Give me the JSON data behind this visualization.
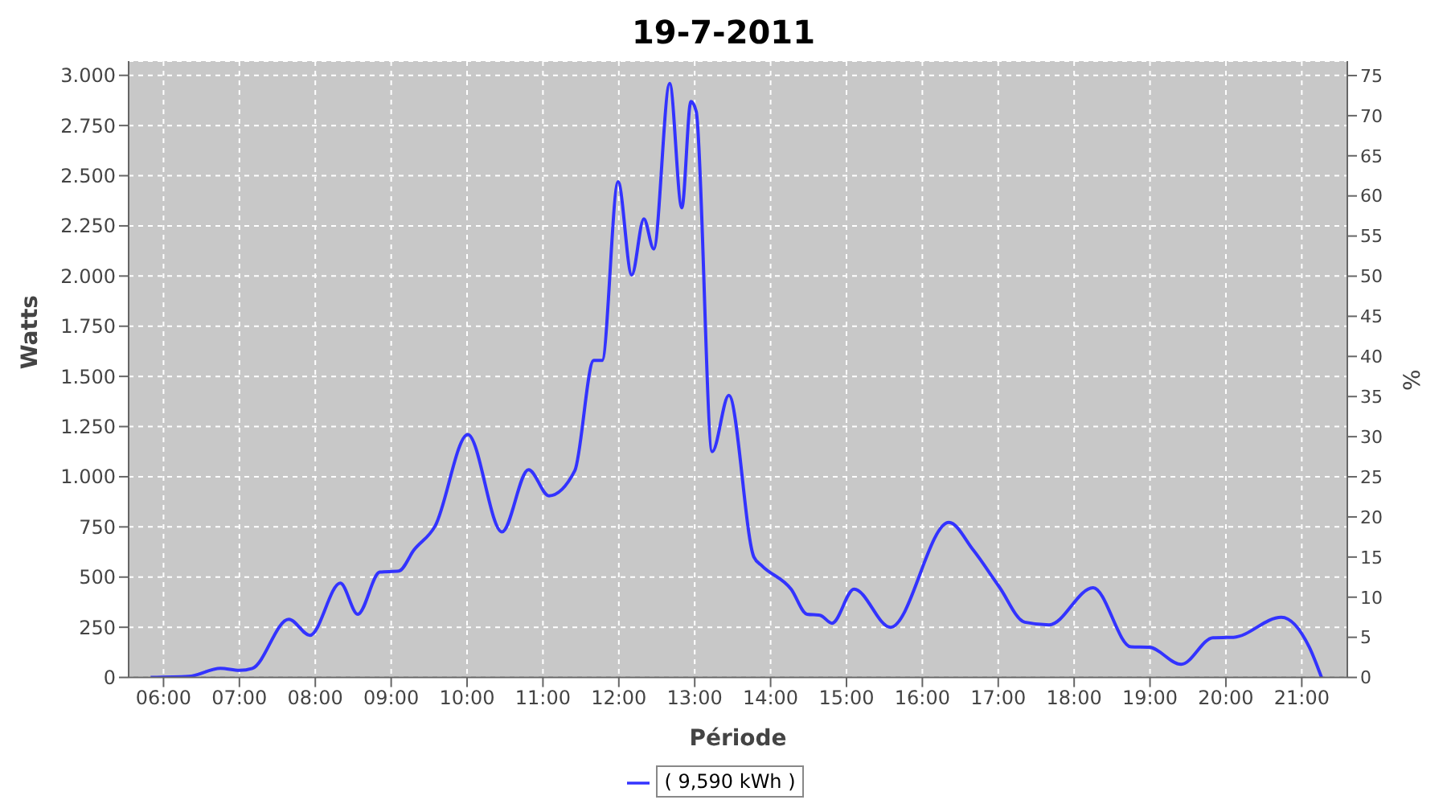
{
  "chart_data": {
    "type": "line",
    "title": "19-7-2011",
    "xlabel": "Période",
    "ylabel": "Watts",
    "y2label": "%",
    "x": [
      5.83,
      6.33,
      6.75,
      7.0,
      7.17,
      7.65,
      7.93,
      8.33,
      8.56,
      8.85,
      9.1,
      9.3,
      9.58,
      10.01,
      10.46,
      10.81,
      11.08,
      11.42,
      11.67,
      11.78,
      11.99,
      12.17,
      12.33,
      12.46,
      12.67,
      12.83,
      12.95,
      13.02,
      13.23,
      13.45,
      13.78,
      13.89,
      14.27,
      14.48,
      14.65,
      14.81,
      15.1,
      15.58,
      16.35,
      16.67,
      17.01,
      17.35,
      17.67,
      18.25,
      18.75,
      18.99,
      19.41,
      19.83,
      20.1,
      20.73,
      21.1,
      21.26
    ],
    "series": [
      {
        "name": "( 9,590 kWh )",
        "color": "#3333ff",
        "values": [
          0,
          5,
          45,
          35,
          45,
          290,
          210,
          470,
          315,
          525,
          530,
          635,
          755,
          1210,
          725,
          1035,
          905,
          1030,
          1580,
          1580,
          2470,
          2005,
          2285,
          2135,
          2960,
          2340,
          2870,
          2820,
          1125,
          1405,
          600,
          555,
          440,
          315,
          310,
          270,
          440,
          250,
          772,
          635,
          453,
          275,
          262,
          447,
          152,
          150,
          65,
          198,
          200,
          300,
          150,
          0
        ]
      }
    ],
    "xlim": [
      5.54,
      21.6
    ],
    "xticks": [
      {
        "value": 6,
        "label": "06:00"
      },
      {
        "value": 7,
        "label": "07:00"
      },
      {
        "value": 8,
        "label": "08:00"
      },
      {
        "value": 9,
        "label": "09:00"
      },
      {
        "value": 10,
        "label": "10:00"
      },
      {
        "value": 11,
        "label": "11:00"
      },
      {
        "value": 12,
        "label": "12:00"
      },
      {
        "value": 13,
        "label": "13:00"
      },
      {
        "value": 14,
        "label": "14:00"
      },
      {
        "value": 15,
        "label": "15:00"
      },
      {
        "value": 16,
        "label": "16:00"
      },
      {
        "value": 17,
        "label": "17:00"
      },
      {
        "value": 18,
        "label": "18:00"
      },
      {
        "value": 19,
        "label": "19:00"
      },
      {
        "value": 20,
        "label": "20:00"
      },
      {
        "value": 21,
        "label": "21:00"
      }
    ],
    "ylim": [
      0,
      3071
    ],
    "yticks": [
      0,
      250,
      500,
      750,
      {
        "value": 1000,
        "label": "1.000"
      },
      {
        "value": 1250,
        "label": "1.250"
      },
      {
        "value": 1500,
        "label": "1.500"
      },
      {
        "value": 1750,
        "label": "1.750"
      },
      {
        "value": 2000,
        "label": "2.000"
      },
      {
        "value": 2250,
        "label": "2.250"
      },
      {
        "value": 2500,
        "label": "2.500"
      },
      {
        "value": 2750,
        "label": "2.750"
      },
      {
        "value": 3000,
        "label": "3.000"
      }
    ],
    "y2lim": [
      0,
      76.8
    ],
    "y2ticks": [
      0,
      5,
      10,
      15,
      20,
      25,
      30,
      35,
      40,
      45,
      50,
      55,
      60,
      65,
      70,
      75
    ],
    "grid": true,
    "legend": "bottom",
    "marker": "none",
    "line_style": "solid"
  }
}
